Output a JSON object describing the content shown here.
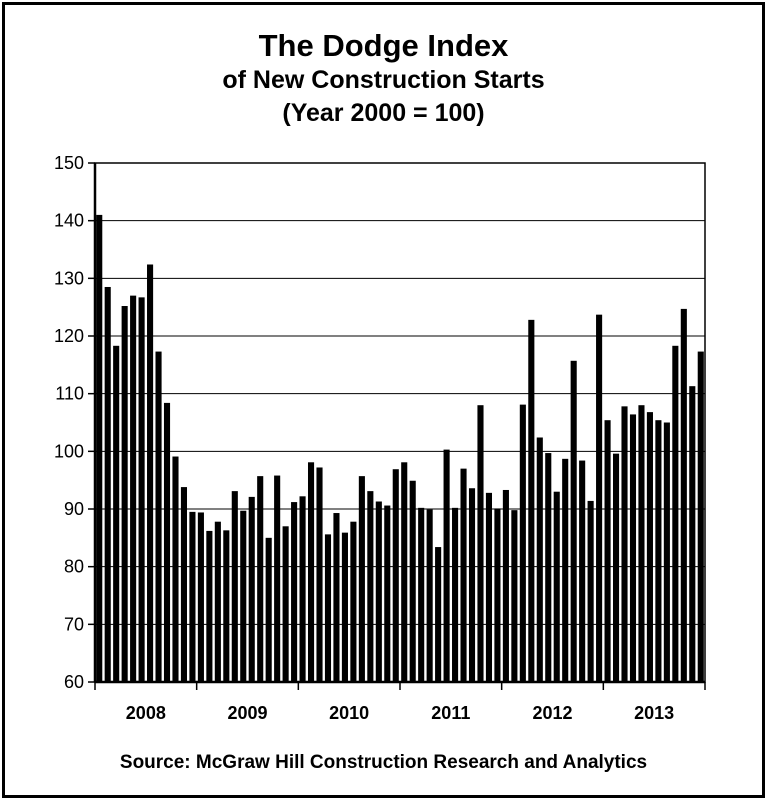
{
  "chart_data": {
    "type": "bar",
    "title": "The Dodge Index",
    "subtitle": "of New Construction Starts",
    "subtitle2": "(Year 2000 = 100)",
    "ylim": [
      60,
      150
    ],
    "y_ticks": [
      60,
      70,
      80,
      90,
      100,
      110,
      120,
      130,
      140,
      150
    ],
    "grid": true,
    "bar_color": "#000000",
    "year_labels": [
      "2008",
      "2009",
      "2010",
      "2011",
      "2012",
      "2013"
    ],
    "values": [
      141,
      128.5,
      118.3,
      125.2,
      127,
      126.7,
      132.4,
      117.3,
      108.4,
      99.1,
      93.8,
      89.5,
      89.4,
      86.2,
      87.8,
      86.3,
      93.1,
      89.7,
      92.1,
      95.7,
      85,
      95.8,
      87,
      91.2,
      92.2,
      98.1,
      97.2,
      85.6,
      89.3,
      85.9,
      87.8,
      95.7,
      93.1,
      91.3,
      90.6,
      96.9,
      98.1,
      94.9,
      90.2,
      89.9,
      83.4,
      100.3,
      90.2,
      97,
      93.6,
      108,
      92.8,
      90.1,
      93.3,
      89.8,
      108.1,
      122.8,
      102.4,
      99.7,
      93,
      98.7,
      115.7,
      98.4,
      91.4,
      123.7,
      105.4,
      99.6,
      107.8,
      106.4,
      108,
      106.8,
      105.4,
      105,
      118.3,
      124.7,
      111.3,
      117.3
    ],
    "months_per_year": 12
  },
  "source": "Source:  McGraw Hill Construction Research and Analytics"
}
